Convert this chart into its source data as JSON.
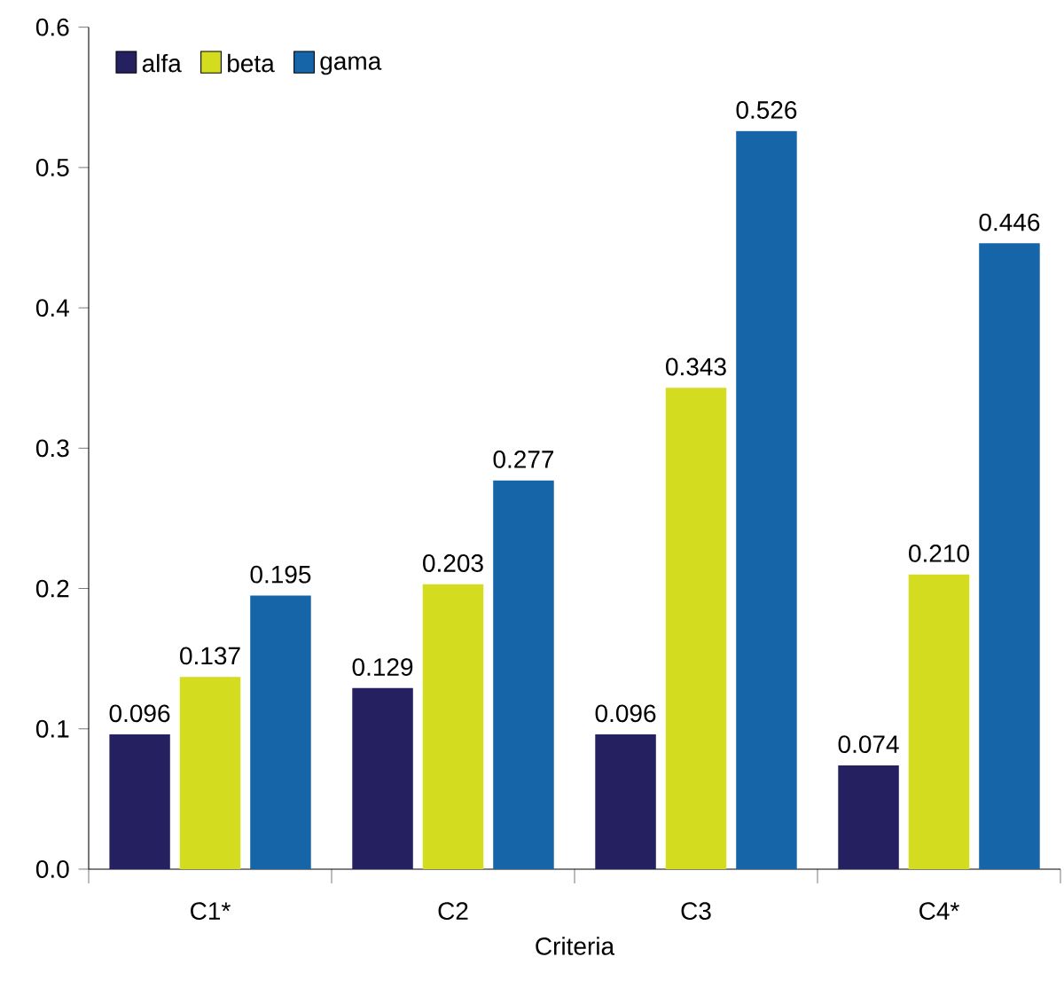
{
  "chart_data": {
    "type": "bar",
    "xlabel": "Criteria",
    "categories": [
      "C1*",
      "C2",
      "C3",
      "C4*"
    ],
    "series": [
      {
        "name": "alfa",
        "color": "#252060",
        "values": [
          0.096,
          0.129,
          0.096,
          0.074
        ],
        "value_labels": [
          "0.096",
          "0.129",
          "0.096",
          "0.074"
        ]
      },
      {
        "name": "beta",
        "color": "#d4dc1f",
        "values": [
          0.137,
          0.203,
          0.343,
          0.21
        ],
        "value_labels": [
          "0.137",
          "0.203",
          "0.343",
          "0.210"
        ]
      },
      {
        "name": "gama",
        "color": "#1565a8",
        "values": [
          0.195,
          0.277,
          0.526,
          0.446
        ],
        "value_labels": [
          "0.195",
          "0.277",
          "0.526",
          "0.446"
        ]
      }
    ],
    "ylim": [
      0,
      0.6
    ],
    "yticks": [
      {
        "value": 0,
        "label": "0.0"
      },
      0.1,
      0.2,
      0.3,
      0.4,
      0.5,
      0.6
    ],
    "grid": false,
    "legend": "top left"
  }
}
